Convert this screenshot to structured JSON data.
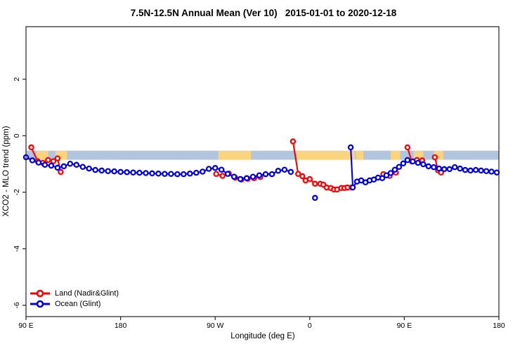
{
  "title": "7.5N-12.5N Annual Mean (Ver 10)   2015-01-01 to 2020-12-18",
  "chart_data": {
    "type": "line",
    "title": "7.5N-12.5N Annual Mean (Ver 10)   2015-01-01 to 2020-12-18",
    "xlabel": "Longitude (deg E)",
    "ylabel": "XCO2 - MLO trend (ppm)",
    "xlim": [
      90,
      540
    ],
    "ylim": [
      -6.4,
      3.86
    ],
    "grid": false,
    "legend_position": "bottom-left",
    "x_axis_note": "longitude wraps eastward: 90E to 180 to 90W to 0 to 90E to 180",
    "x_ticks": [
      {
        "value": 90,
        "label": "90 E"
      },
      {
        "value": 180,
        "label": "180"
      },
      {
        "value": 270,
        "label": "90 W"
      },
      {
        "value": 360,
        "label": "0"
      },
      {
        "value": 450,
        "label": "90 E"
      },
      {
        "value": 540,
        "label": "180"
      }
    ],
    "y_ticks": [
      {
        "value": 2,
        "label": "2"
      },
      {
        "value": 0,
        "label": "0"
      },
      {
        "value": -2,
        "label": "-2"
      },
      {
        "value": -4,
        "label": "-4"
      },
      {
        "value": -6,
        "label": "-6"
      }
    ],
    "map_band": {
      "ocean_color": "#b2c5de",
      "land_color": "#fbd57e",
      "value_top": -0.53,
      "value_bottom": -0.85,
      "land_segments": [
        [
          100,
          111
        ],
        [
          118,
          129
        ],
        [
          273,
          304
        ],
        [
          347,
          403
        ],
        [
          404,
          411
        ],
        [
          437,
          446
        ],
        [
          459,
          468
        ],
        [
          478,
          487
        ]
      ]
    },
    "series": [
      {
        "name": "Land (Nadir&Glint)",
        "color": "#ff0000",
        "marker": "open-circle",
        "segments": [
          [
            [
              95,
              -0.41
            ],
            [
              101,
              -0.9
            ],
            [
              106,
              -0.96
            ],
            [
              111,
              -0.86
            ],
            [
              116,
              -0.9
            ],
            [
              120,
              -0.8
            ],
            [
              123,
              -1.28
            ]
          ],
          [
            [
              271,
              -1.35
            ],
            [
              277,
              -1.42
            ],
            [
              283,
              -1.34
            ],
            [
              289,
              -1.48
            ],
            [
              295,
              -1.55
            ],
            [
              301,
              -1.52
            ],
            [
              307,
              -1.5
            ],
            [
              313,
              -1.46
            ]
          ],
          [
            [
              344,
              -0.2
            ],
            [
              349,
              -1.35
            ],
            [
              353,
              -1.43
            ],
            [
              356,
              -1.58
            ],
            [
              360,
              -1.53
            ],
            [
              365,
              -1.7
            ],
            [
              370,
              -1.7
            ],
            [
              373,
              -1.73
            ],
            [
              376,
              -1.83
            ],
            [
              380,
              -1.85
            ],
            [
              383,
              -1.9
            ],
            [
              386,
              -1.9
            ],
            [
              390,
              -1.85
            ],
            [
              393,
              -1.85
            ],
            [
              396,
              -1.83
            ],
            [
              400,
              -1.83
            ]
          ],
          [
            [
              430,
              -1.36
            ],
            [
              436,
              -1.42
            ],
            [
              442,
              -1.3
            ]
          ],
          [
            [
              453,
              -0.41
            ],
            [
              457,
              -0.91
            ],
            [
              462,
              -0.86
            ],
            [
              467,
              -0.87
            ]
          ],
          [
            [
              479,
              -0.76
            ],
            [
              482,
              -1.22
            ],
            [
              485,
              -1.3
            ]
          ]
        ],
        "outliers": []
      },
      {
        "name": "Ocean (Glint)",
        "color": "#0000ee",
        "marker": "open-circle",
        "segments": [
          [
            [
              90,
              -0.76
            ],
            [
              96,
              -0.87
            ],
            [
              102,
              -0.95
            ],
            [
              108,
              -1.03
            ],
            [
              114,
              -1.06
            ],
            [
              120,
              -1.13
            ],
            [
              126,
              -1.08
            ],
            [
              132,
              -0.99
            ],
            [
              138,
              -1.03
            ],
            [
              144,
              -1.1
            ],
            [
              150,
              -1.16
            ],
            [
              156,
              -1.21
            ],
            [
              162,
              -1.23
            ],
            [
              168,
              -1.25
            ],
            [
              174,
              -1.26
            ],
            [
              180,
              -1.28
            ],
            [
              186,
              -1.29
            ],
            [
              192,
              -1.3
            ],
            [
              198,
              -1.31
            ],
            [
              204,
              -1.32
            ],
            [
              210,
              -1.33
            ],
            [
              216,
              -1.34
            ],
            [
              222,
              -1.35
            ],
            [
              228,
              -1.35
            ],
            [
              234,
              -1.36
            ],
            [
              240,
              -1.36
            ],
            [
              246,
              -1.34
            ],
            [
              252,
              -1.31
            ],
            [
              258,
              -1.27
            ],
            [
              264,
              -1.17
            ],
            [
              270,
              -1.14
            ],
            [
              276,
              -1.2
            ],
            [
              282,
              -1.35
            ],
            [
              288,
              -1.45
            ],
            [
              294,
              -1.53
            ],
            [
              300,
              -1.5
            ],
            [
              306,
              -1.45
            ],
            [
              312,
              -1.4
            ],
            [
              318,
              -1.36
            ],
            [
              324,
              -1.36
            ],
            [
              330,
              -1.24
            ],
            [
              336,
              -1.2
            ],
            [
              342,
              -1.28
            ]
          ],
          [
            [
              399,
              -0.41
            ],
            [
              401,
              -1.83
            ],
            [
              405,
              -1.62
            ],
            [
              409,
              -1.58
            ],
            [
              413,
              -1.65
            ],
            [
              417,
              -1.58
            ],
            [
              421,
              -1.55
            ],
            [
              425,
              -1.48
            ],
            [
              429,
              -1.5
            ],
            [
              433,
              -1.4
            ],
            [
              437,
              -1.32
            ],
            [
              441,
              -1.2
            ],
            [
              445,
              -1.1
            ],
            [
              449,
              -0.98
            ],
            [
              453,
              -0.86
            ],
            [
              458,
              -0.91
            ],
            [
              463,
              -0.96
            ],
            [
              468,
              -1.01
            ],
            [
              473,
              -1.08
            ],
            [
              478,
              -1.11
            ],
            [
              483,
              -1.16
            ],
            [
              488,
              -1.18
            ],
            [
              493,
              -1.18
            ],
            [
              498,
              -1.11
            ],
            [
              503,
              -1.16
            ],
            [
              508,
              -1.21
            ],
            [
              513,
              -1.23
            ],
            [
              518,
              -1.21
            ],
            [
              523,
              -1.23
            ],
            [
              528,
              -1.25
            ],
            [
              533,
              -1.27
            ],
            [
              538,
              -1.3
            ]
          ]
        ],
        "outliers": [
          [
            365,
            -2.2
          ]
        ]
      }
    ]
  }
}
